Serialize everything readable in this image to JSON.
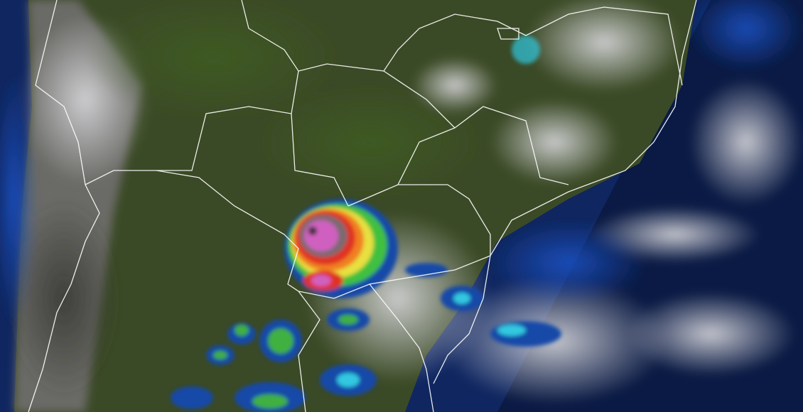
{
  "map": {
    "kind": "satellite-infrared-composite",
    "colors": {
      "ocean": "#0f2a6e",
      "ocean_deep": "#0a1838",
      "land": "#3e5124",
      "land_dark": "#2c3a1c",
      "cloud": "#c9cbd0",
      "borders": "#ffffff",
      "storm_core": "#d060c0",
      "storm_red": "#e03020",
      "storm_orange": "#f08020",
      "storm_yellow": "#e8e040",
      "storm_green": "#40c040",
      "storm_cyan": "#30c8e0",
      "storm_blue": "#1848a8"
    }
  }
}
